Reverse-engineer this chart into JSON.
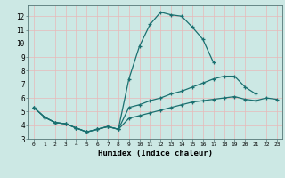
{
  "xlabel": "Humidex (Indice chaleur)",
  "bg_color": "#cce8e4",
  "line_color": "#1a7070",
  "grid_color": "#e8b8b8",
  "xlim": [
    -0.5,
    23.5
  ],
  "ylim": [
    3.0,
    12.8
  ],
  "xticks": [
    0,
    1,
    2,
    3,
    4,
    5,
    6,
    7,
    8,
    9,
    10,
    11,
    12,
    13,
    14,
    15,
    16,
    17,
    18,
    19,
    20,
    21,
    22,
    23
  ],
  "yticks": [
    3,
    4,
    5,
    6,
    7,
    8,
    9,
    10,
    11,
    12
  ],
  "line1_y": [
    5.3,
    4.6,
    4.2,
    4.1,
    3.8,
    3.5,
    3.7,
    3.9,
    3.7,
    7.4,
    9.8,
    11.4,
    12.3,
    12.1,
    12.0,
    11.2,
    10.3,
    8.6,
    null,
    null,
    null,
    null,
    null,
    null
  ],
  "line2_y": [
    5.3,
    4.6,
    4.2,
    4.1,
    3.8,
    3.5,
    3.7,
    3.9,
    3.7,
    5.3,
    5.5,
    5.8,
    6.0,
    6.3,
    6.5,
    6.8,
    7.1,
    7.4,
    7.6,
    7.6,
    6.8,
    6.3,
    null,
    null
  ],
  "line3_y": [
    5.3,
    4.6,
    4.2,
    4.1,
    3.8,
    3.5,
    3.7,
    3.9,
    3.7,
    4.5,
    4.7,
    4.9,
    5.1,
    5.3,
    5.5,
    5.7,
    5.8,
    5.9,
    6.0,
    6.1,
    5.9,
    5.8,
    6.0,
    5.9
  ]
}
